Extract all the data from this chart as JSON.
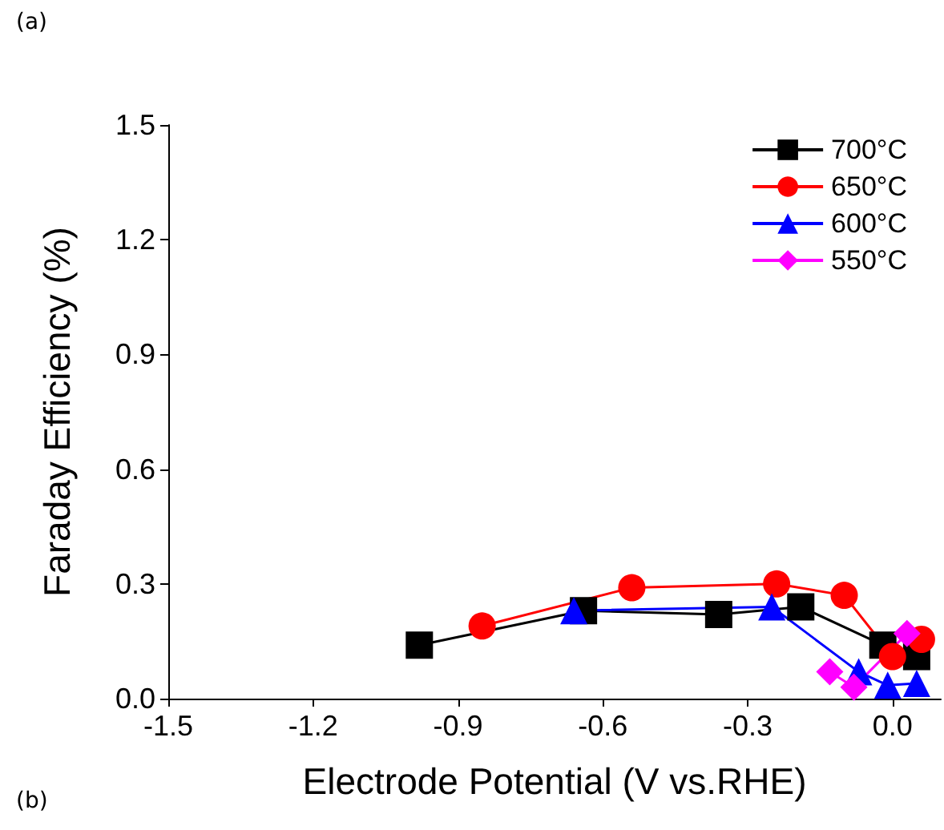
{
  "chart_data": {
    "type": "line",
    "xlabel": "Electrode Potential (V vs.RHE)",
    "ylabel": "Faraday Efficiency (%)",
    "annotations": [
      "(a)",
      "(b)"
    ],
    "xlim": [
      -1.5,
      0.1
    ],
    "xticks": [
      -1.5,
      -1.2,
      -0.9,
      -0.6,
      -0.3,
      {
        "value": 0,
        "label": "0.0"
      }
    ],
    "ylim": [
      0,
      1.5
    ],
    "yticks": [
      {
        "value": 0,
        "label": "0.0"
      },
      0.3,
      0.6,
      0.9,
      1.2,
      1.5
    ],
    "legend": "top right",
    "grid": false,
    "series": [
      {
        "name": "700°C",
        "color": "#000000",
        "marker": "square",
        "x": [
          -0.98,
          -0.64,
          -0.36,
          -0.19,
          -0.02,
          0.05
        ],
        "values": [
          0.14,
          0.23,
          0.22,
          0.24,
          0.14,
          0.11
        ]
      },
      {
        "name": "650°C",
        "color": "#ff0000",
        "marker": "circle",
        "x": [
          -0.85,
          -0.54,
          -0.24,
          -0.1,
          0,
          0.06
        ],
        "values": [
          0.19,
          0.29,
          0.3,
          0.27,
          0.11,
          0.155
        ]
      },
      {
        "name": "600°C",
        "color": "#0000ff",
        "marker": "triangle",
        "x": [
          -0.66,
          -0.25,
          -0.07,
          -0.01,
          0.05
        ],
        "values": [
          0.23,
          0.24,
          0.07,
          0.035,
          0.04
        ]
      },
      {
        "name": "550°C",
        "color": "#ff00ff",
        "marker": "diamond",
        "x": [
          -0.13,
          -0.08,
          0.03
        ],
        "values": [
          0.07,
          0.03,
          0.17
        ]
      }
    ]
  }
}
